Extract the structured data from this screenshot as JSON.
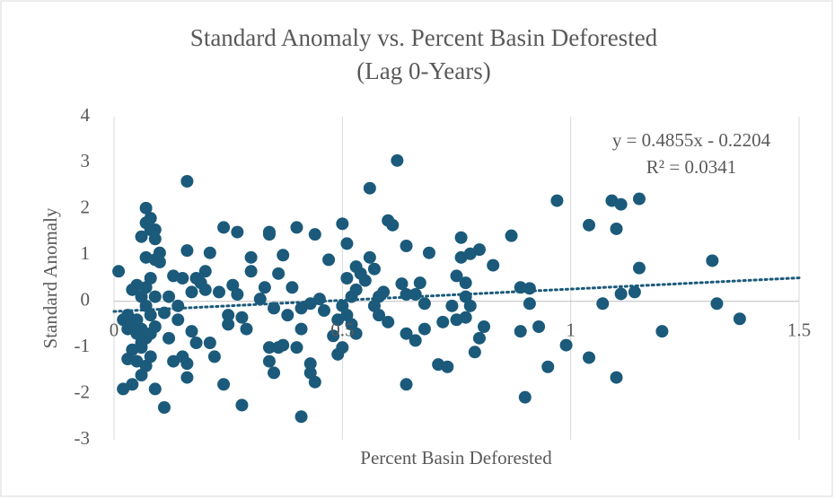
{
  "chart_data": {
    "type": "scatter",
    "title": "Standard Anomaly vs. Percent Basin Deforested",
    "subtitle": "(Lag 0-Years)",
    "x_label": "Percent Basin Deforested",
    "y_label": "Standard Anomaly",
    "color": "#1b5a7a",
    "xlim": [
      0,
      1.5
    ],
    "xticks": [
      0,
      0.5,
      1,
      1.5
    ],
    "ylim": [
      -3,
      4
    ],
    "yticks": [
      -3,
      -2,
      -1,
      0,
      1,
      2,
      3,
      4
    ],
    "grid": true,
    "trendline": {
      "slope": 0.4855,
      "intercept": -0.2204,
      "equation": "y = 0.4855x - 0.2204",
      "r2": "R² = 0.0341"
    },
    "x": [
      0.01,
      0.16,
      0.62,
      0.56,
      0.6,
      0.61,
      0.07,
      0.08,
      0.09,
      0.97,
      1.04,
      1.09,
      1.11,
      1.15,
      1.1,
      1.15,
      1.31,
      1.32,
      1.37,
      1.2,
      1.14,
      1.11,
      1.07,
      1.1,
      1.04,
      0.99,
      0.95,
      0.93,
      0.9,
      0.89,
      0.89,
      0.91,
      0.91,
      0.87,
      0.83,
      0.8,
      0.78,
      0.76,
      0.76,
      0.75,
      0.77,
      0.77,
      0.78,
      0.77,
      0.75,
      0.74,
      0.72,
      0.73,
      0.71,
      0.68,
      0.69,
      0.81,
      0.8,
      0.79,
      0.64,
      0.64,
      0.64,
      0.66,
      0.67,
      0.66,
      0.68,
      0.63,
      0.64,
      0.59,
      0.58,
      0.57,
      0.58,
      0.6,
      0.57,
      0.56,
      0.53,
      0.54,
      0.55,
      0.53,
      0.52,
      0.51,
      0.5,
      0.51,
      0.5,
      0.51,
      0.52,
      0.53,
      0.49,
      0.48,
      0.49,
      0.5,
      0.47,
      0.46,
      0.45,
      0.44,
      0.43,
      0.44,
      0.43,
      0.43,
      0.41,
      0.41,
      0.41,
      0.4,
      0.4,
      0.39,
      0.38,
      0.37,
      0.37,
      0.36,
      0.36,
      0.35,
      0.35,
      0.34,
      0.34,
      0.34,
      0.34,
      0.33,
      0.32,
      0.3,
      0.3,
      0.29,
      0.28,
      0.28,
      0.27,
      0.27,
      0.26,
      0.25,
      0.25,
      0.24,
      0.24,
      0.23,
      0.22,
      0.21,
      0.21,
      0.2,
      0.2,
      0.19,
      0.18,
      0.18,
      0.17,
      0.17,
      0.16,
      0.16,
      0.16,
      0.15,
      0.15,
      0.14,
      0.14,
      0.13,
      0.13,
      0.12,
      0.12,
      0.11,
      0.11,
      0.1,
      0.1,
      0.09,
      0.09,
      0.09,
      0.09,
      0.08,
      0.08,
      0.08,
      0.08,
      0.07,
      0.07,
      0.07,
      0.07,
      0.07,
      0.07,
      0.06,
      0.06,
      0.06,
      0.06,
      0.06,
      0.06,
      0.05,
      0.05,
      0.05,
      0.05,
      0.04,
      0.04,
      0.04,
      0.04,
      0.03,
      0.03,
      0.03,
      0.02,
      0.02,
      0.08,
      0.09
    ],
    "values": [
      0.65,
      2.6,
      3.05,
      2.45,
      1.75,
      1.65,
      2.02,
      1.8,
      1.55,
      2.18,
      1.65,
      2.18,
      2.1,
      2.22,
      1.57,
      0.72,
      0.88,
      -0.05,
      -0.38,
      -0.65,
      0.2,
      0.16,
      -0.05,
      -1.65,
      -1.22,
      -0.95,
      -1.42,
      -0.55,
      -2.08,
      -0.65,
      0.3,
      0.28,
      -0.05,
      1.42,
      0.78,
      1.12,
      1.03,
      1.38,
      0.95,
      0.55,
      0.4,
      0.1,
      -0.1,
      -0.35,
      -0.4,
      -0.1,
      -0.45,
      -1.42,
      -1.37,
      -0.05,
      1.05,
      -0.55,
      -0.8,
      -1.1,
      -1.8,
      1.2,
      0.15,
      0.15,
      0.4,
      -0.85,
      -0.6,
      0.38,
      -0.7,
      0.2,
      0.1,
      -0.1,
      -0.3,
      -0.45,
      0.7,
      0.95,
      0.75,
      0.6,
      0.45,
      0.25,
      0.1,
      1.25,
      1.68,
      0.5,
      -0.1,
      -0.3,
      -0.5,
      -0.7,
      -0.4,
      -0.75,
      -1.15,
      -1.0,
      0.9,
      -0.2,
      0.05,
      1.45,
      -0.05,
      -1.75,
      -1.55,
      -1.35,
      -2.5,
      -0.6,
      -0.15,
      -1.0,
      1.6,
      0.3,
      -0.3,
      1.0,
      -0.95,
      -1.0,
      0.6,
      -0.15,
      -1.55,
      -1.3,
      -1.0,
      1.5,
      1.45,
      0.3,
      0.05,
      0.65,
      0.95,
      -0.6,
      -0.35,
      -2.25,
      1.5,
      0.15,
      0.35,
      -0.5,
      -0.3,
      -1.8,
      1.6,
      0.2,
      -1.2,
      1.05,
      -0.9,
      0.65,
      0.25,
      0.4,
      -0.9,
      0.5,
      -0.65,
      0.2,
      1.1,
      -1.35,
      -1.65,
      -1.2,
      0.5,
      -0.1,
      -0.4,
      0.55,
      -1.3,
      0.1,
      -0.8,
      -2.3,
      -0.25,
      1.05,
      0.85,
      1.35,
      0.1,
      -0.55,
      -1.9,
      -0.7,
      -0.3,
      0.5,
      -1.2,
      0.95,
      0.3,
      -0.1,
      -0.8,
      -1.4,
      1.7,
      -0.6,
      -1.0,
      -0.9,
      0.1,
      1.4,
      -1.6,
      -0.4,
      -0.7,
      0.35,
      -1.3,
      -0.5,
      0.25,
      -1.05,
      -1.8,
      -0.6,
      -0.3,
      -1.25,
      -1.9,
      -0.4,
      1.55,
      0.9
    ]
  }
}
